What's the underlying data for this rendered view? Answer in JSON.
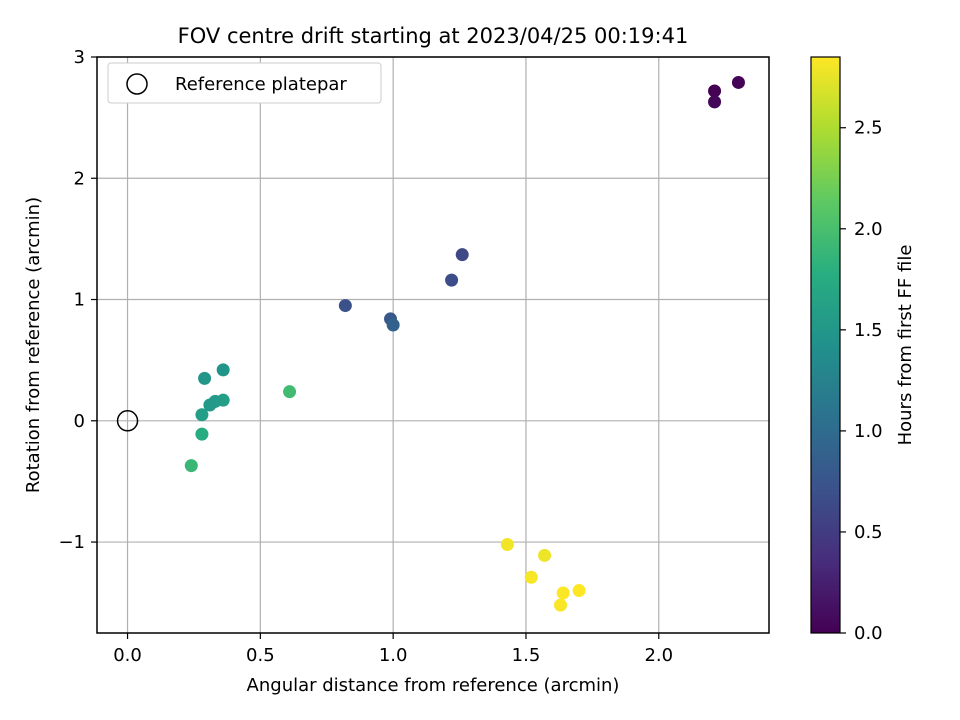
{
  "chart_data": {
    "type": "scatter",
    "title": "FOV centre drift starting at 2023/04/25 00:19:41",
    "xlabel": "Angular distance from reference (arcmin)",
    "ylabel": "Rotation from reference (arcmin)",
    "xlim": [
      -0.115,
      2.415
    ],
    "ylim": [
      -1.75,
      3.0
    ],
    "xticks": [
      0.0,
      0.5,
      1.0,
      1.5,
      2.0
    ],
    "xtick_labels": [
      "0.0",
      "0.5",
      "1.0",
      "1.5",
      "2.0"
    ],
    "yticks": [
      -1,
      0,
      1,
      2,
      3
    ],
    "ytick_labels": [
      "−1",
      "0",
      "1",
      "2",
      "3"
    ],
    "grid": true,
    "legend": {
      "placement": "top-left",
      "entries": [
        "Reference platepar"
      ]
    },
    "reference_point": {
      "x": 0.0,
      "y": 0.0
    },
    "colorbar": {
      "label": "Hours from first FF file",
      "colormap": "viridis",
      "range": [
        0.0,
        2.85
      ],
      "ticks": [
        0.0,
        0.5,
        1.0,
        1.5,
        2.0,
        2.5
      ],
      "tick_labels": [
        "0.0",
        "0.5",
        "1.0",
        "1.5",
        "2.0",
        "2.5"
      ]
    },
    "points": [
      {
        "x": 2.21,
        "y": 2.72,
        "hours": 0.0
      },
      {
        "x": 2.3,
        "y": 2.79,
        "hours": 0.02
      },
      {
        "x": 2.21,
        "y": 2.63,
        "hours": 0.04
      },
      {
        "x": 1.26,
        "y": 1.37,
        "hours": 0.62
      },
      {
        "x": 1.22,
        "y": 1.16,
        "hours": 0.66
      },
      {
        "x": 0.82,
        "y": 0.95,
        "hours": 0.7
      },
      {
        "x": 0.99,
        "y": 0.84,
        "hours": 0.78
      },
      {
        "x": 1.0,
        "y": 0.79,
        "hours": 0.88
      },
      {
        "x": 0.29,
        "y": 0.35,
        "hours": 1.5
      },
      {
        "x": 0.36,
        "y": 0.42,
        "hours": 1.48
      },
      {
        "x": 0.36,
        "y": 0.17,
        "hours": 1.58
      },
      {
        "x": 0.33,
        "y": 0.16,
        "hours": 1.55
      },
      {
        "x": 0.31,
        "y": 0.13,
        "hours": 1.52
      },
      {
        "x": 0.28,
        "y": 0.05,
        "hours": 1.58
      },
      {
        "x": 0.28,
        "y": -0.11,
        "hours": 1.75
      },
      {
        "x": 0.24,
        "y": -0.37,
        "hours": 1.9
      },
      {
        "x": 0.61,
        "y": 0.24,
        "hours": 1.95
      },
      {
        "x": 1.43,
        "y": -1.02,
        "hours": 2.8
      },
      {
        "x": 1.57,
        "y": -1.11,
        "hours": 2.78
      },
      {
        "x": 1.52,
        "y": -1.29,
        "hours": 2.82
      },
      {
        "x": 1.64,
        "y": -1.42,
        "hours": 2.84
      },
      {
        "x": 1.7,
        "y": -1.4,
        "hours": 2.85
      },
      {
        "x": 1.63,
        "y": -1.52,
        "hours": 2.83
      }
    ]
  }
}
